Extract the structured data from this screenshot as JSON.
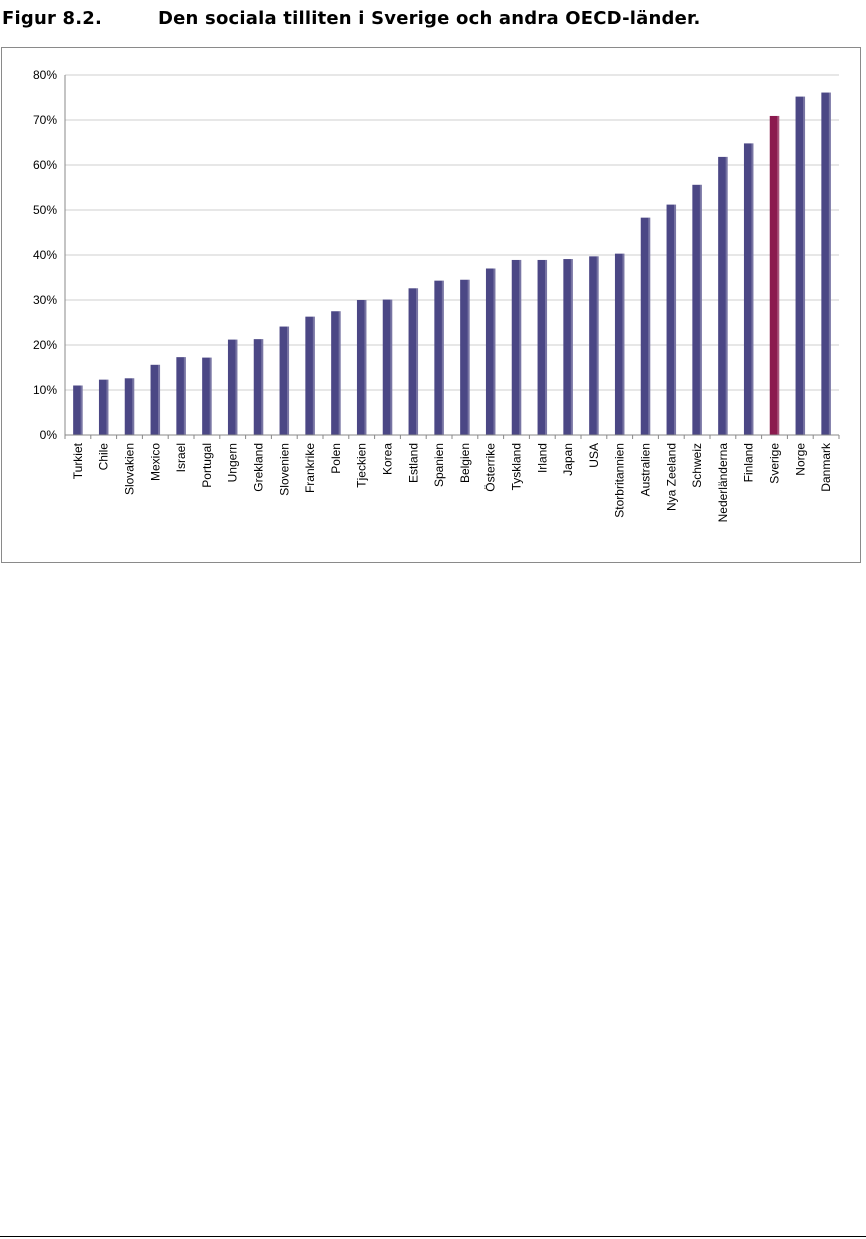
{
  "caption": {
    "label": "Figur 8.2.",
    "title": "Den sociala tilliten i Sverige och andra OECD-länder."
  },
  "colors": {
    "bar": "#4b4785",
    "bar_highlight": "#8b1a4e",
    "grid": "#cfcfcf"
  },
  "chart_data": {
    "type": "bar",
    "title": "",
    "xlabel": "",
    "ylabel": "",
    "ylim": [
      0,
      80
    ],
    "yticks": [
      0,
      10,
      20,
      30,
      40,
      50,
      60,
      70,
      80
    ],
    "ytick_labels": [
      "0%",
      "10%",
      "20%",
      "30%",
      "40%",
      "50%",
      "60%",
      "70%",
      "80%"
    ],
    "grid": true,
    "legend": "none",
    "highlight": "Sverige",
    "categories": [
      "Turkiet",
      "Chile",
      "Slovakien",
      "Mexico",
      "Israel",
      "Portugal",
      "Ungern",
      "Grekland",
      "Slovenien",
      "Frankrike",
      "Polen",
      "Tjeckien",
      "Korea",
      "Estland",
      "Spanien",
      "Belgien",
      "Österrike",
      "Tyskland",
      "Irland",
      "Japan",
      "USA",
      "Storbritannien",
      "Australien",
      "Nya Zeeland",
      "Schweiz",
      "Nederländerna",
      "Finland",
      "Sverige",
      "Norge",
      "Danmark"
    ],
    "values": [
      11,
      12.3,
      12.6,
      15.6,
      17.3,
      17.2,
      21.2,
      21.3,
      24.1,
      26.3,
      27.5,
      30,
      30.1,
      32.6,
      34.3,
      34.5,
      37,
      38.9,
      38.9,
      39.1,
      39.7,
      40.3,
      48.3,
      51.2,
      55.6,
      61.8,
      64.8,
      70.9,
      75.2,
      76.1
    ]
  }
}
